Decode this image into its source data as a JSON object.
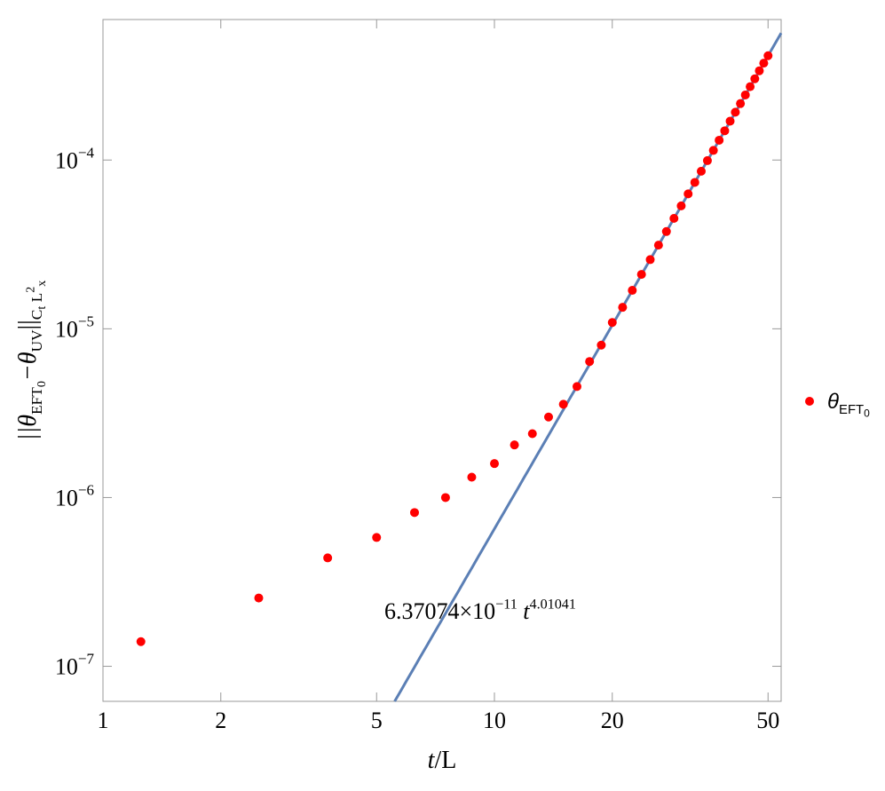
{
  "chart_data": {
    "type": "scatter",
    "x_scale": "log",
    "y_scale": "log",
    "xlim": [
      1,
      54
    ],
    "ylim": [
      6.2e-08,
      0.00068
    ],
    "xticks": [
      1,
      2,
      5,
      10,
      20,
      50
    ],
    "yticks": [
      {
        "value": 1e-07,
        "label": "10−7"
      },
      {
        "value": 1e-06,
        "label": "10−6"
      },
      {
        "value": 1e-05,
        "label": "10−5"
      },
      {
        "value": 0.0001,
        "label": "10−4"
      }
    ],
    "xlabel": [
      {
        "t": "t",
        "s": "italic"
      },
      {
        "t": "/L",
        "s": "normal"
      }
    ],
    "ylabel": [
      {
        "t": "||θ",
        "s": "italic"
      },
      {
        "t": "EFT",
        "s": "sub"
      },
      {
        "t": "0",
        "s": "subsub"
      },
      {
        "t": "−θ",
        "s": "italic"
      },
      {
        "t": "UV",
        "s": "sub"
      },
      {
        "t": "||",
        "s": "normal"
      },
      {
        "t": "C",
        "s": "sub"
      },
      {
        "t": "t",
        "s": "subsub"
      },
      {
        "t": " L",
        "s": "sub"
      },
      {
        "t": "2",
        "s": "subsup"
      },
      {
        "t": "x",
        "s": "subsub"
      }
    ],
    "legend": "right",
    "series": [
      {
        "name": [
          {
            "t": "θ",
            "s": "italic"
          },
          {
            "t": "EFT",
            "s": "sub"
          },
          {
            "t": "0",
            "s": "subsub"
          }
        ],
        "color": "#ff0000",
        "x": [
          1.25,
          2.5,
          3.75,
          5,
          6.25,
          7.5,
          8.75,
          10,
          11.25,
          12.5,
          13.75,
          15,
          16.25,
          17.5,
          18.75,
          20,
          21.25,
          22.5,
          23.75,
          25,
          26.25,
          27.5,
          28.75,
          30,
          31.25,
          32.5,
          33.75,
          35,
          36.25,
          37.5,
          38.75,
          40,
          41.25,
          42.5,
          43.75,
          45,
          46.25,
          47.5,
          48.75,
          50
        ],
        "values": [
          1.4e-07,
          2.54e-07,
          4.39e-07,
          5.8e-07,
          8.15e-07,
          1e-06,
          1.32e-06,
          1.59e-06,
          2.05e-06,
          2.39e-06,
          3e-06,
          3.57e-06,
          4.55e-06,
          6.4e-06,
          8e-06,
          1.09e-05,
          1.34e-05,
          1.69e-05,
          2.1e-05,
          2.57e-05,
          3.13e-05,
          3.77e-05,
          4.51e-05,
          5.35e-05,
          6.3e-05,
          7.37e-05,
          8.58e-05,
          9.92e-05,
          0.000114,
          0.000131,
          0.000149,
          0.00017,
          0.000192,
          0.000216,
          0.000243,
          0.000272,
          0.000303,
          0.000338,
          0.000375,
          0.000415
        ]
      }
    ],
    "fit": {
      "coefficient": 6.37074e-11,
      "exponent": 4.01041,
      "color": "#5b7fb5",
      "label": [
        {
          "t": "6.37074×10",
          "s": "normal"
        },
        {
          "t": "−11",
          "s": "sup"
        },
        {
          "t": " t",
          "s": "italic"
        },
        {
          "t": "4.01041",
          "s": "sup"
        }
      ]
    }
  }
}
